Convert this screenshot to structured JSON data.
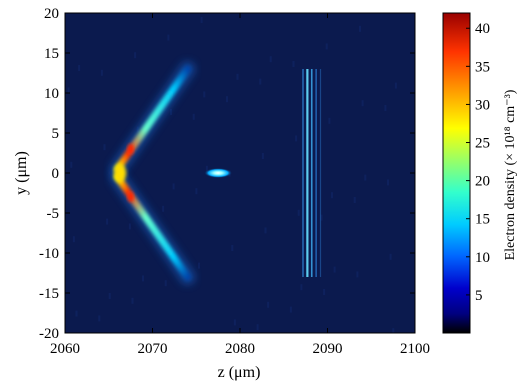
{
  "chart_data": {
    "type": "heatmap",
    "title": "",
    "xlabel": "z (μm)",
    "ylabel": "y (μm)",
    "xlim": [
      2060,
      2100
    ],
    "ylim": [
      -20,
      20
    ],
    "x_ticks": [
      "2060",
      "2070",
      "2080",
      "2090",
      "2100"
    ],
    "y_ticks": [
      "20",
      "15",
      "10",
      "5",
      "0",
      "-5",
      "-10",
      "-15",
      "-20"
    ],
    "colorbar": {
      "label": "Electron density (× 10¹⁸ cm⁻³)",
      "range": [
        0,
        42
      ],
      "ticks": [
        "40",
        "35",
        "30",
        "25",
        "20",
        "15",
        "10",
        "5"
      ],
      "colormap": "jet"
    },
    "features": [
      {
        "name": "wake-front-upper-arm",
        "z_start": 2066,
        "y_start": 0.5,
        "z_end": 2074,
        "y_end": 13,
        "peak_density": 40
      },
      {
        "name": "wake-front-lower-arm",
        "z_start": 2066,
        "y_start": -0.5,
        "z_end": 2074,
        "y_end": -13,
        "peak_density": 40
      },
      {
        "name": "electron-bunch",
        "z": 2077.5,
        "y": 0,
        "peak_density": 12
      },
      {
        "name": "density-striations",
        "z_range": [
          2087,
          2089
        ],
        "y_range": [
          -13,
          13
        ],
        "peak_density": 10
      }
    ],
    "background_color": "#0b1a4e",
    "grid": false
  }
}
